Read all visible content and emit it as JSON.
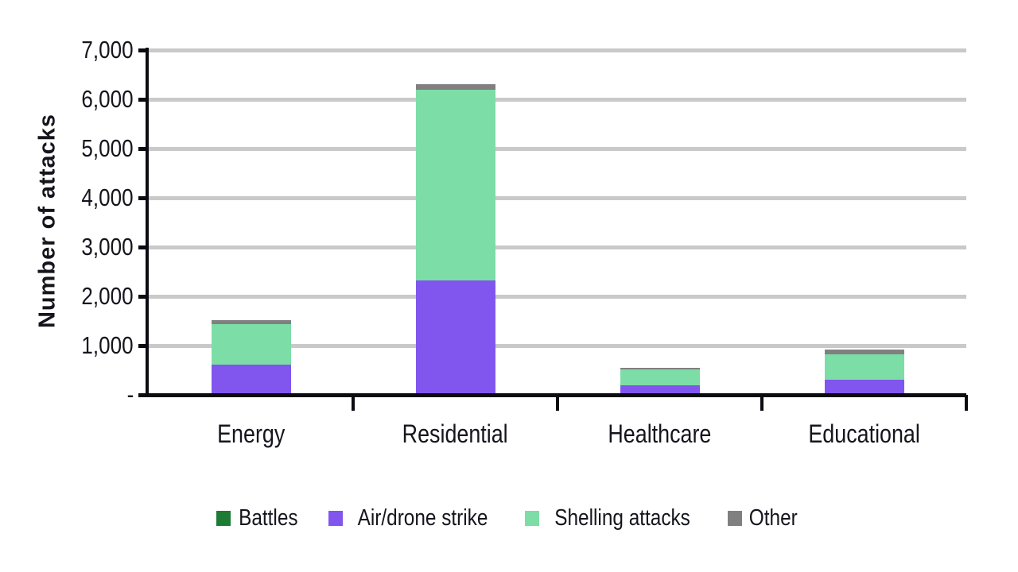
{
  "chart_data": {
    "type": "bar",
    "stacked": true,
    "title": "",
    "xlabel": "",
    "ylabel": "Number of attacks",
    "categories": [
      "Energy",
      "Residential",
      "Healthcare",
      "Educational"
    ],
    "series": [
      {
        "name": "Battles",
        "color": "#1E7B34",
        "values": [
          0,
          0,
          0,
          0
        ]
      },
      {
        "name": "Air/drone strike",
        "color": "#8056EE",
        "values": [
          620,
          2320,
          195,
          305
        ]
      },
      {
        "name": "Shelling attacks",
        "color": "#7CDDA6",
        "values": [
          815,
          3875,
          320,
          520
        ]
      },
      {
        "name": "Other",
        "color": "#808080",
        "values": [
          80,
          105,
          40,
          90
        ]
      }
    ],
    "totals": [
      1515,
      6300,
      555,
      915
    ],
    "ylim": [
      0,
      7000
    ],
    "ytick_step": 1000,
    "ytick_labels": [
      "-",
      "1,000",
      "2,000",
      "3,000",
      "4,000",
      "5,000",
      "6,000",
      "7,000"
    ],
    "grid": true,
    "gridline_color": "#C9C9C9",
    "axis_color": "#0B0B12",
    "text_color": "#15151E",
    "legend_position": "bottom"
  }
}
